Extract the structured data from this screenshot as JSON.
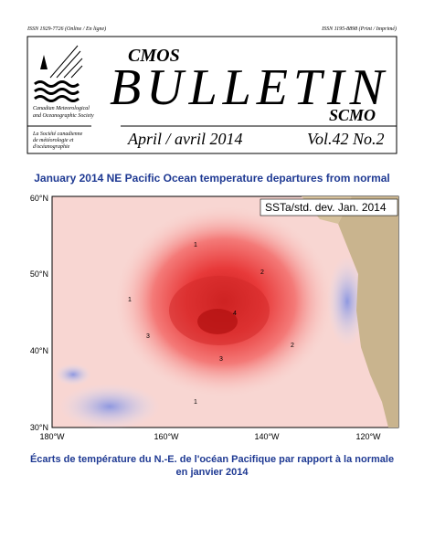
{
  "header": {
    "issn_left": "ISSN 1929-7726 (Online / En ligne)",
    "issn_right": "ISSN 1195-8898 (Print / Imprimé)",
    "title_small": "CMOS",
    "title": "BULLETIN",
    "title_sub": "SCMO",
    "society_en": [
      "Canadian Meteorological",
      "and Oceanographic Society"
    ],
    "society_fr": [
      "La Société canadienne",
      "de météorologie et",
      "d'océanographie"
    ],
    "date": "April / avril 2014",
    "volume": "Vol.42 No.2"
  },
  "figure": {
    "caption_top": "January 2014 NE Pacific Ocean temperature departures from normal",
    "map_label": "SSTa/std. dev.  Jan. 2014",
    "lat_labels": [
      "60°N",
      "50°N",
      "40°N",
      "30°N"
    ],
    "lon_labels": [
      "180°W",
      "160°W",
      "140°W",
      "120°W"
    ],
    "contour_labels": [
      "1",
      "2",
      "3",
      "4",
      "2",
      "1",
      "3",
      "1"
    ],
    "caption_bottom": [
      "Écarts de température du N.-E. de l'océan Pacifique par rapport à la normale",
      "en janvier 2014"
    ]
  }
}
